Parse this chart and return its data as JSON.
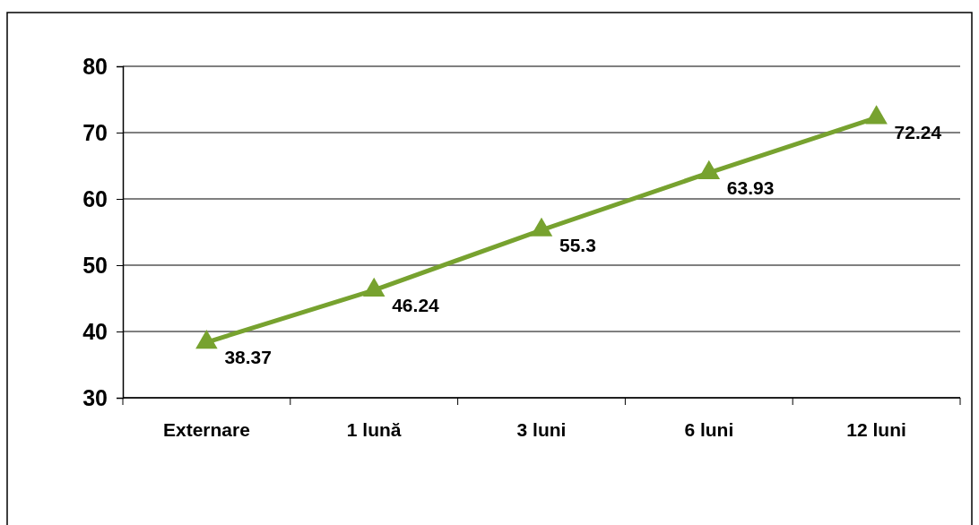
{
  "chart_data": {
    "type": "line",
    "categories": [
      "Externare",
      "1 lună",
      "3 luni",
      "6 luni",
      "12 luni"
    ],
    "series": [
      {
        "color": "#77a22f",
        "values": [
          38.37,
          46.24,
          55.3,
          63.93,
          72.24
        ]
      }
    ],
    "ylim": [
      30,
      80
    ],
    "yticks": [
      30,
      40,
      50,
      60,
      70,
      80
    ],
    "grid": "y",
    "marker": "triangle",
    "line_style": "solid",
    "data_labels": true
  }
}
